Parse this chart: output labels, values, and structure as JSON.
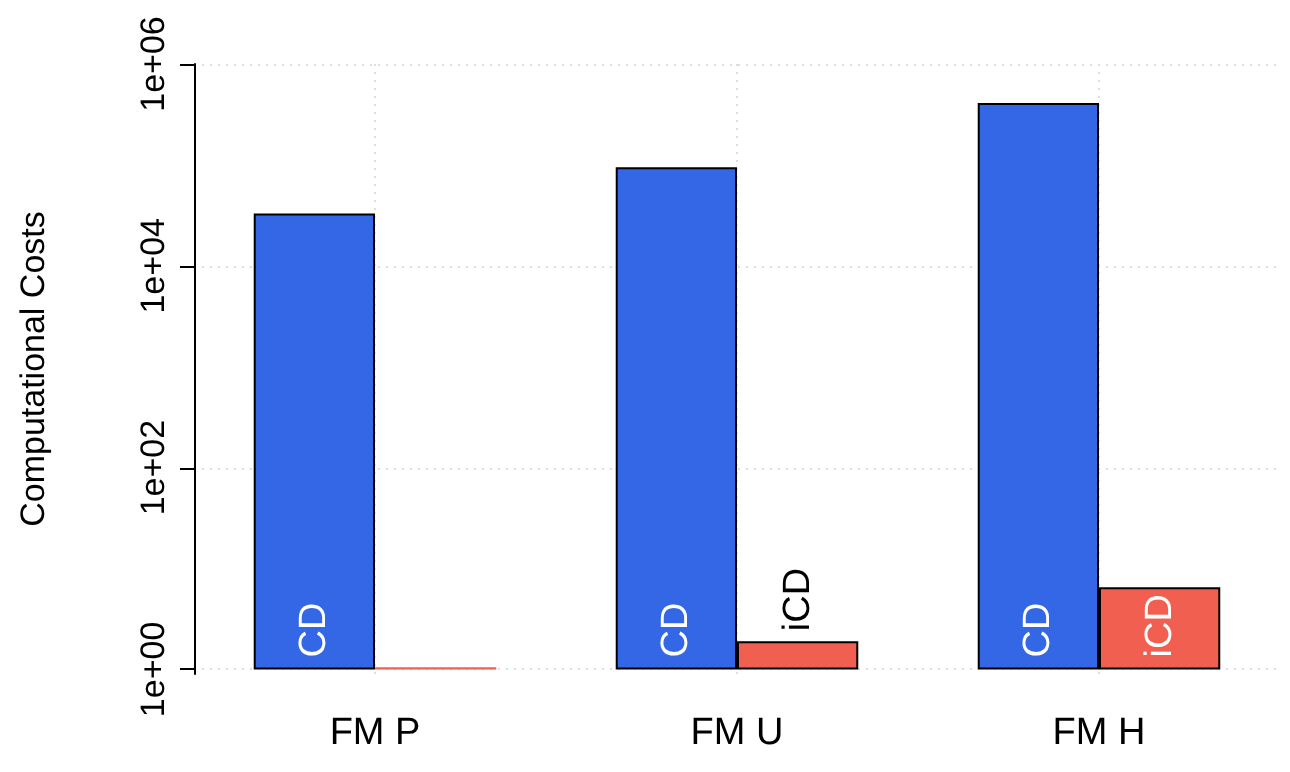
{
  "chart_data": {
    "type": "bar",
    "ylabel": "Computational Costs",
    "categories": [
      "FM P",
      "FM U",
      "FM H"
    ],
    "series": [
      {
        "name": "CD",
        "color": "#3367e6",
        "values": [
          33000,
          95000,
          410000
        ]
      },
      {
        "name": "iCD",
        "color": "#f05f50",
        "values": [
          1.05,
          1.9,
          6.5
        ]
      }
    ],
    "log": "y",
    "ylim": [
      0.9,
      1000000
    ],
    "yticks": [
      {
        "value": 1,
        "label": "1e+00"
      },
      {
        "value": 100,
        "label": "1e+02"
      },
      {
        "value": 10000,
        "label": "1e+04"
      },
      {
        "value": 1000000,
        "label": "1e+06"
      }
    ],
    "grid": true,
    "legend": false
  }
}
